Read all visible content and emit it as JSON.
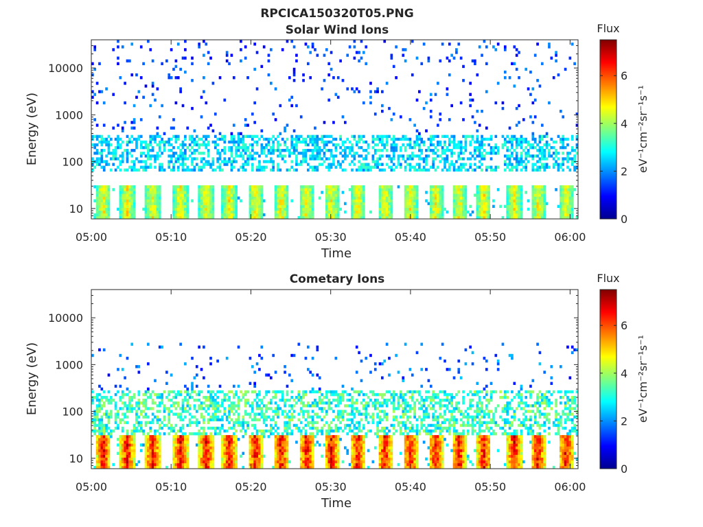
{
  "figure_title": "RPCICA150320T05.PNG",
  "chart_data": [
    {
      "type": "heatmap",
      "title": "Solar Wind Ions",
      "xlabel": "Time",
      "ylabel": "Energy (eV)",
      "x_tick_labels": [
        "05:00",
        "05:10",
        "05:20",
        "05:30",
        "05:40",
        "05:50",
        "06:00"
      ],
      "x_range_minutes": [
        0,
        61
      ],
      "y_scale": "log",
      "y_range": [
        6,
        40000
      ],
      "y_tick_values": [
        10,
        100,
        1000,
        10000
      ],
      "y_tick_labels": [
        "10",
        "100",
        "1000",
        "10000"
      ],
      "colorbar": {
        "label": "Flux",
        "units": "eV⁻¹cm⁻²sr⁻¹s⁻¹",
        "range": [
          0,
          7.5
        ],
        "ticks": [
          "0",
          "2",
          "4",
          "6"
        ],
        "colormap": "jet"
      },
      "bursts_minutes": [
        1.5,
        4.5,
        7.7,
        11.2,
        14.4,
        17.3,
        20.6,
        23.8,
        27.0,
        30.1,
        33.4,
        36.8,
        40.0,
        43.2,
        46.1,
        49.2,
        53.0,
        56.0,
        59.5
      ],
      "low_energy_band_eV": [
        6,
        30
      ],
      "low_band_peak_flux": 4.8,
      "mid_band_eV": [
        60,
        350
      ],
      "mid_band_flux": 2.6,
      "sparse_high_energy_eV": [
        350,
        40000
      ],
      "sparse_flux": 1.3
    },
    {
      "type": "heatmap",
      "title": "Cometary Ions",
      "xlabel": "Time",
      "ylabel": "Energy (eV)",
      "x_tick_labels": [
        "05:00",
        "05:10",
        "05:20",
        "05:30",
        "05:40",
        "05:50",
        "06:00"
      ],
      "x_range_minutes": [
        0,
        61
      ],
      "y_scale": "log",
      "y_range": [
        6,
        40000
      ],
      "y_tick_values": [
        10,
        100,
        1000,
        10000
      ],
      "y_tick_labels": [
        "10",
        "100",
        "1000",
        "10000"
      ],
      "colorbar": {
        "label": "Flux",
        "units": "eV⁻¹cm⁻²sr⁻¹s⁻¹",
        "range": [
          0,
          7.5
        ],
        "ticks": [
          "0",
          "2",
          "4",
          "6"
        ],
        "colormap": "jet"
      },
      "bursts_minutes": [
        1.5,
        4.5,
        7.7,
        11.2,
        14.4,
        17.3,
        20.6,
        23.8,
        27.0,
        30.1,
        33.4,
        36.8,
        40.0,
        43.2,
        46.1,
        49.2,
        53.0,
        56.0,
        59.5
      ],
      "low_energy_band_eV": [
        6,
        30
      ],
      "low_band_peak_flux": 6.7,
      "mid_band_eV": [
        30,
        300
      ],
      "mid_band_flux": 3.2,
      "sparse_high_energy_eV": [
        300,
        3000
      ],
      "sparse_flux": 1.5
    }
  ]
}
